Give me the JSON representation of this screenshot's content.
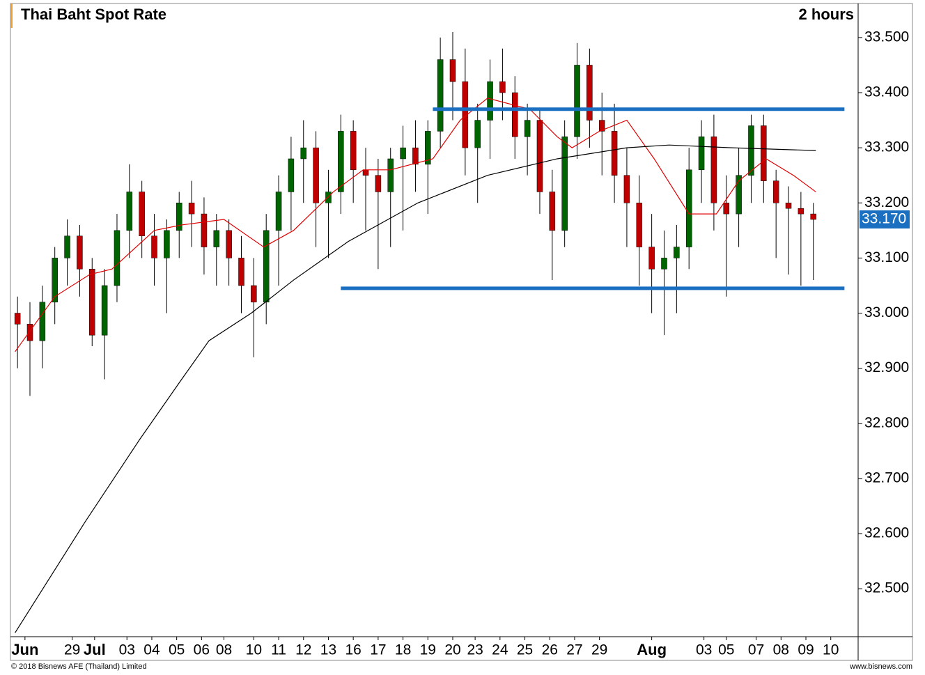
{
  "chart_data": {
    "type": "candlestick",
    "title": "Thai Baht Spot Rate",
    "interval": "2 hours",
    "footer_left": "© 2018 Bisnews AFE (Thailand) Limited",
    "footer_right": "www.bisnews.com",
    "xlim": [
      0,
      34
    ],
    "ylim": [
      32.413,
      33.558
    ],
    "yticks": [
      {
        "value": 32.5,
        "label": "32.500"
      },
      {
        "value": 32.6,
        "label": "32.600"
      },
      {
        "value": 32.7,
        "label": "32.700"
      },
      {
        "value": 32.8,
        "label": "32.800"
      },
      {
        "value": 32.9,
        "label": "32.900"
      },
      {
        "value": 33.0,
        "label": "33.000"
      },
      {
        "value": 33.1,
        "label": "33.100"
      },
      {
        "value": 33.2,
        "label": "33.200"
      },
      {
        "value": 33.3,
        "label": "33.300"
      },
      {
        "value": 33.4,
        "label": "33.400"
      },
      {
        "value": 33.5,
        "label": "33.500"
      }
    ],
    "xticks": [
      {
        "value": 0.5,
        "label": "Jun"
      },
      {
        "value": 2.4,
        "label": "29"
      },
      {
        "value": 3.3,
        "label": "Jul"
      },
      {
        "value": 4.6,
        "label": "03"
      },
      {
        "value": 5.6,
        "label": "04"
      },
      {
        "value": 6.6,
        "label": "05"
      },
      {
        "value": 7.6,
        "label": "06"
      },
      {
        "value": 8.5,
        "label": "08"
      },
      {
        "value": 9.7,
        "label": "10"
      },
      {
        "value": 10.7,
        "label": "11"
      },
      {
        "value": 11.7,
        "label": "12"
      },
      {
        "value": 12.7,
        "label": "13"
      },
      {
        "value": 13.7,
        "label": "16"
      },
      {
        "value": 14.7,
        "label": "17"
      },
      {
        "value": 15.7,
        "label": "18"
      },
      {
        "value": 16.7,
        "label": "19"
      },
      {
        "value": 17.7,
        "label": "20"
      },
      {
        "value": 18.6,
        "label": "23"
      },
      {
        "value": 19.6,
        "label": "24"
      },
      {
        "value": 20.6,
        "label": "25"
      },
      {
        "value": 21.6,
        "label": "26"
      },
      {
        "value": 22.6,
        "label": "27"
      },
      {
        "value": 23.6,
        "label": "29"
      },
      {
        "value": 25.7,
        "label": "Aug"
      },
      {
        "value": 27.8,
        "label": "03"
      },
      {
        "value": 28.7,
        "label": "05"
      },
      {
        "value": 29.9,
        "label": "07"
      },
      {
        "value": 30.9,
        "label": "08"
      },
      {
        "value": 31.9,
        "label": "09"
      },
      {
        "value": 32.9,
        "label": "10"
      }
    ],
    "up_color": "#006400",
    "down_color": "#c00000",
    "x": [
      0.2,
      0.7,
      1.2,
      1.7,
      2.2,
      2.7,
      3.2,
      3.7,
      4.2,
      4.7,
      5.2,
      5.7,
      6.2,
      6.7,
      7.2,
      7.7,
      8.2,
      8.7,
      9.2,
      9.7,
      10.2,
      10.7,
      11.2,
      11.7,
      12.2,
      12.7,
      13.2,
      13.7,
      14.2,
      14.7,
      15.2,
      15.7,
      16.2,
      16.7,
      17.2,
      17.7,
      18.2,
      18.7,
      19.2,
      19.7,
      20.2,
      20.7,
      21.2,
      21.7,
      22.2,
      22.7,
      23.2,
      23.7,
      24.2,
      24.7,
      25.2,
      25.7,
      26.2,
      26.7,
      27.2,
      27.7,
      28.2,
      28.7,
      29.2,
      29.7,
      30.2,
      30.7,
      31.2,
      31.7,
      32.2
    ],
    "open": [
      33.0,
      32.98,
      32.95,
      33.02,
      33.1,
      33.14,
      33.08,
      32.96,
      33.05,
      33.15,
      33.22,
      33.14,
      33.1,
      33.15,
      33.2,
      33.18,
      33.12,
      33.15,
      33.1,
      33.05,
      33.02,
      33.15,
      33.22,
      33.28,
      33.3,
      33.2,
      33.22,
      33.33,
      33.26,
      33.25,
      33.22,
      33.28,
      33.3,
      33.27,
      33.33,
      33.46,
      33.42,
      33.3,
      33.35,
      33.42,
      33.4,
      33.32,
      33.35,
      33.22,
      33.15,
      33.32,
      33.45,
      33.35,
      33.33,
      33.25,
      33.2,
      33.12,
      33.08,
      33.1,
      33.12,
      33.26,
      33.32,
      33.2,
      33.18,
      33.25,
      33.34,
      33.24,
      33.2,
      33.19,
      33.18
    ],
    "high": [
      33.03,
      33.02,
      33.05,
      33.12,
      33.17,
      33.16,
      33.1,
      33.08,
      33.18,
      33.27,
      33.24,
      33.18,
      33.17,
      33.22,
      33.24,
      33.21,
      33.18,
      33.17,
      33.14,
      33.1,
      33.18,
      33.25,
      33.32,
      33.35,
      33.33,
      33.26,
      33.36,
      33.35,
      33.3,
      33.28,
      33.3,
      33.34,
      33.35,
      33.35,
      33.5,
      33.51,
      33.48,
      33.38,
      33.46,
      33.48,
      33.43,
      33.38,
      33.37,
      33.26,
      33.35,
      33.49,
      33.48,
      33.4,
      33.38,
      33.3,
      33.25,
      33.18,
      33.15,
      33.16,
      33.3,
      33.35,
      33.36,
      33.25,
      33.3,
      33.36,
      33.36,
      33.26,
      33.23,
      33.22,
      33.2
    ],
    "low": [
      32.9,
      32.85,
      32.9,
      32.98,
      33.05,
      33.03,
      32.94,
      32.88,
      33.02,
      33.1,
      33.1,
      33.05,
      33.0,
      33.1,
      33.12,
      33.07,
      33.05,
      33.05,
      33.0,
      32.92,
      32.98,
      33.05,
      33.15,
      33.2,
      33.12,
      33.1,
      33.18,
      33.2,
      33.15,
      33.08,
      33.12,
      33.15,
      33.22,
      33.18,
      33.3,
      33.35,
      33.25,
      33.2,
      33.28,
      33.35,
      33.28,
      33.25,
      33.18,
      33.06,
      33.12,
      33.28,
      33.3,
      33.25,
      33.2,
      33.12,
      33.05,
      33.0,
      32.96,
      33.0,
      33.08,
      33.2,
      33.15,
      33.03,
      33.12,
      33.2,
      33.2,
      33.1,
      33.07,
      33.05,
      33.06
    ],
    "close": [
      32.98,
      32.95,
      33.02,
      33.1,
      33.14,
      33.08,
      32.96,
      33.05,
      33.15,
      33.22,
      33.14,
      33.1,
      33.15,
      33.2,
      33.18,
      33.12,
      33.15,
      33.1,
      33.05,
      33.02,
      33.15,
      33.22,
      33.28,
      33.3,
      33.2,
      33.22,
      33.33,
      33.26,
      33.25,
      33.22,
      33.28,
      33.3,
      33.27,
      33.33,
      33.46,
      33.42,
      33.3,
      33.35,
      33.42,
      33.4,
      33.32,
      33.35,
      33.22,
      33.15,
      33.32,
      33.45,
      33.35,
      33.33,
      33.25,
      33.2,
      33.12,
      33.08,
      33.1,
      33.12,
      33.26,
      33.32,
      33.2,
      33.18,
      33.25,
      33.34,
      33.24,
      33.2,
      33.19,
      33.18,
      33.17
    ],
    "lines": [
      {
        "color": "#e00000",
        "x": [
          0.1,
          1.7,
          3.1,
          4.0,
          5.7,
          6.8,
          8.5,
          10.1,
          11.3,
          12.9,
          14.1,
          15.2,
          16.9,
          18.0,
          19.1,
          20.8,
          21.9,
          22.5,
          23.6,
          24.7,
          25.8,
          27.2,
          28.3,
          29.2,
          30.3,
          31.4,
          32.3
        ],
        "values": [
          32.93,
          33.03,
          33.07,
          33.08,
          33.15,
          33.16,
          33.17,
          33.12,
          33.15,
          33.22,
          33.26,
          33.26,
          33.28,
          33.35,
          33.39,
          33.37,
          33.32,
          33.3,
          33.33,
          33.35,
          33.28,
          33.18,
          33.18,
          33.24,
          33.28,
          33.25,
          33.22
        ]
      },
      {
        "color": "#000000",
        "x": [
          0.1,
          2.9,
          5.1,
          6.8,
          7.9,
          9.6,
          11.3,
          13.5,
          16.3,
          19.1,
          21.9,
          24.7,
          26.4,
          28.9,
          32.3
        ],
        "values": [
          32.42,
          32.62,
          32.77,
          32.88,
          32.95,
          33.0,
          33.06,
          33.13,
          33.2,
          33.25,
          33.28,
          33.3,
          33.305,
          33.3,
          33.295
        ]
      }
    ],
    "levels": [
      {
        "value": 33.37,
        "x": [
          16.9,
          33.45
        ],
        "color": "#1a6fc0"
      },
      {
        "value": 33.045,
        "x": [
          13.2,
          33.45
        ],
        "color": "#1a6fc0"
      }
    ],
    "last_price": {
      "value": 33.17,
      "label": "33.170"
    }
  }
}
